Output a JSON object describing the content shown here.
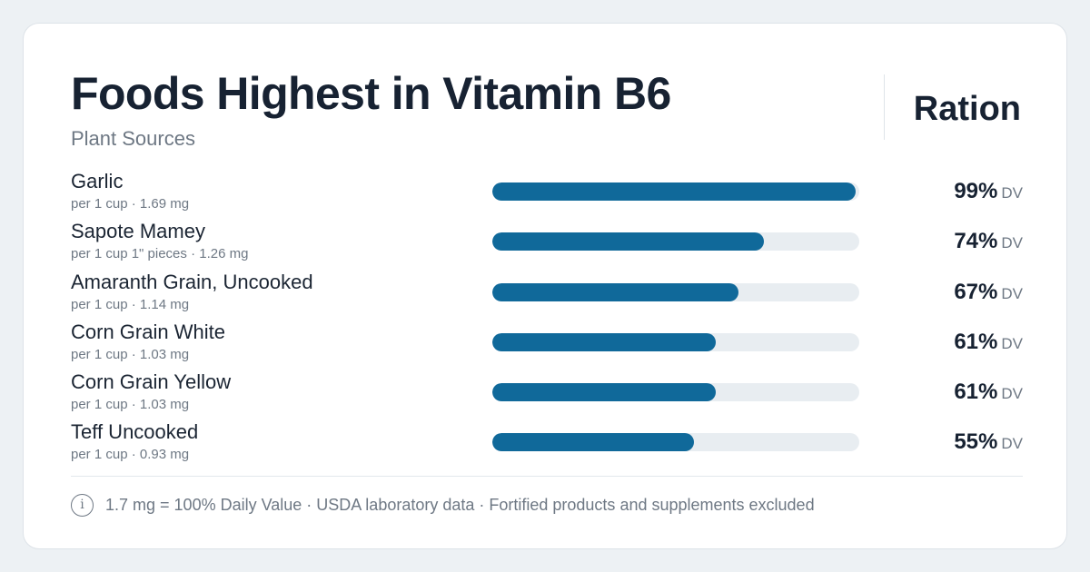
{
  "header": {
    "title": "Foods Highest in Vitamin B6",
    "subtitle": "Plant Sources",
    "brand": "Ration"
  },
  "footer": {
    "info_icon_glyph": "i",
    "note": "1.7 mg = 100% Daily Value · USDA laboratory data · Fortified products and supplements excluded"
  },
  "colors": {
    "bar_fill": "#10699a",
    "bar_track": "#e8edf1"
  },
  "chart_data": {
    "type": "bar",
    "orientation": "horizontal",
    "title": "Foods Highest in Vitamin B6",
    "subtitle": "Plant Sources",
    "unit": "% DV",
    "xlim": [
      0,
      100
    ],
    "grid": false,
    "categories": [
      "Garlic",
      "Sapote Mamey",
      "Amaranth Grain, Uncooked",
      "Corn Grain White",
      "Corn Grain Yellow",
      "Teff Uncooked"
    ],
    "values": [
      99,
      74,
      67,
      61,
      61,
      55
    ],
    "rows": [
      {
        "name": "Garlic",
        "meta": "per 1 cup · 1.69 mg",
        "value": 99,
        "label": "99%",
        "unit": "DV"
      },
      {
        "name": "Sapote Mamey",
        "meta": "per 1 cup 1\" pieces · 1.26 mg",
        "value": 74,
        "label": "74%",
        "unit": "DV"
      },
      {
        "name": "Amaranth Grain, Uncooked",
        "meta": "per 1 cup · 1.14 mg",
        "value": 67,
        "label": "67%",
        "unit": "DV"
      },
      {
        "name": "Corn Grain White",
        "meta": "per 1 cup · 1.03 mg",
        "value": 61,
        "label": "61%",
        "unit": "DV"
      },
      {
        "name": "Corn Grain Yellow",
        "meta": "per 1 cup · 1.03 mg",
        "value": 61,
        "label": "61%",
        "unit": "DV"
      },
      {
        "name": "Teff Uncooked",
        "meta": "per 1 cup · 0.93 mg",
        "value": 55,
        "label": "55%",
        "unit": "DV"
      }
    ]
  }
}
